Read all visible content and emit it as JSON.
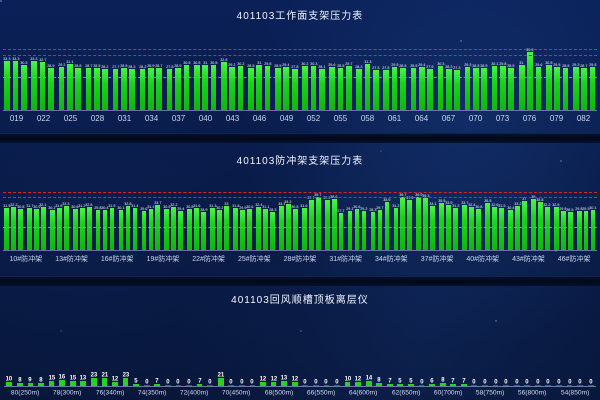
{
  "panels": {
    "panel1": {
      "title": "401103工作面支架压力表"
    },
    "panel2": {
      "title": "401103防冲架支架压力表"
    },
    "panel3": {
      "title": "401103回风顺槽顶板离层仪"
    }
  },
  "colors": {
    "background": "#081a46",
    "bar_green": "#1bd41b",
    "alarm_line_red": "#e02222",
    "warning_line_yellow": "#cf9a22",
    "label_text": "#eef3fb",
    "tick_text": "#c9d6ef"
  },
  "chart_data": [
    {
      "type": "bar",
      "title": "401103工作面支架压力表",
      "ylim": [
        0,
        45
      ],
      "grid": false,
      "legend": "none",
      "thresholds": {
        "alarm": [
          41,
          37
        ],
        "warning": 22
      },
      "tick_labels": [
        "019",
        "022",
        "025",
        "028",
        "031",
        "034",
        "037",
        "040",
        "043",
        "046",
        "049",
        "052",
        "055",
        "058",
        "061",
        "064",
        "067",
        "070",
        "073",
        "076",
        "079",
        "082"
      ],
      "values": [
        33.3,
        33.3,
        30.5,
        33.3,
        32.7,
        28.9,
        29.2,
        31.1,
        28.8,
        28.7,
        28.5,
        28.2,
        27.7,
        28.5,
        28.3,
        28.2,
        28.9,
        28.7,
        27.8,
        28.9,
        30.5,
        30.5,
        31,
        30.5,
        32.5,
        29.2,
        30.2,
        28.5,
        31,
        29.8,
        28.5,
        29.4,
        27.8,
        30.2,
        30.3,
        28.1,
        29.6,
        28.5,
        29.7,
        28.3,
        31.3,
        27.3,
        27.5,
        29.5,
        28.5,
        28.5,
        29.4,
        27.9,
        30.3,
        28.3,
        27.3,
        29.3,
        28.5,
        28.9,
        30.1,
        29.8,
        28.9,
        31,
        39.5,
        29.6,
        30.5,
        29.5,
        28.5,
        29.3,
        28.7,
        29.5
      ]
    },
    {
      "type": "bar",
      "title": "401103防冲架支架压力表",
      "ylim": [
        0,
        45
      ],
      "grid": false,
      "legend": "none",
      "thresholds": {
        "alarm": [
          43,
          39
        ],
        "warning": 16.5
      },
      "tick_labels": [
        "10#防冲架",
        "13#防冲架",
        "16#防冲架",
        "19#防冲架",
        "22#防冲架",
        "25#防冲架",
        "28#防冲架",
        "31#防冲架",
        "34#防冲架",
        "37#防冲架",
        "40#防冲架",
        "43#防冲架",
        "46#防冲架"
      ],
      "values": [
        31.5,
        32.2,
        30.8,
        31.7,
        30.9,
        32.1,
        30.2,
        31.8,
        33.3,
        30.6,
        31.2,
        32.5,
        29.8,
        30.4,
        31.9,
        30.1,
        32.8,
        31.4,
        29.6,
        31.1,
        33.7,
        30.9,
        32.2,
        29.4,
        30.8,
        31.6,
        28.9,
        31.3,
        30.2,
        33,
        31.8,
        29.9,
        30.6,
        32.4,
        31.1,
        28.3,
        33.1,
        34.2,
        30.5,
        31.6,
        37.7,
        39.7,
        37.9,
        38.6,
        27.7,
        29.1,
        30.6,
        29.2,
        28.3,
        29.7,
        35.9,
        31.2,
        39.7,
        37.9,
        39.9,
        39.3,
        33.1,
        35.5,
        33.9,
        31.2,
        33.7,
        32.4,
        30.8,
        35.5,
        32.6,
        31.9,
        30.4,
        33.2,
        37,
        38,
        35.8,
        32.2,
        32.5,
        29.5,
        28.5,
        29.5,
        29.3,
        30.1
      ]
    },
    {
      "type": "bar",
      "title": "401103回风顺槽顶板离层仪",
      "ylim": [
        0,
        25
      ],
      "grid": false,
      "legend": "none",
      "groups": [
        {
          "label": "80(250m)",
          "values": [
            10,
            8,
            9,
            8
          ]
        },
        {
          "label": "78(300m)",
          "values": [
            15,
            16,
            15,
            13
          ]
        },
        {
          "label": "76(340m)",
          "values": [
            23,
            21,
            12,
            23
          ]
        },
        {
          "label": "74(350m)",
          "values": [
            5,
            0,
            7,
            0
          ]
        },
        {
          "label": "72(400m)",
          "values": [
            0,
            0,
            7,
            0
          ]
        },
        {
          "label": "70(450m)",
          "values": [
            21,
            0,
            0,
            0
          ]
        },
        {
          "label": "68(500m)",
          "values": [
            12,
            12,
            13,
            12
          ]
        },
        {
          "label": "66(550m)",
          "values": [
            0,
            0,
            0,
            0
          ]
        },
        {
          "label": "64(600m)",
          "values": [
            10,
            12,
            14,
            8
          ]
        },
        {
          "label": "62(650m)",
          "values": [
            7,
            5,
            5,
            0
          ]
        },
        {
          "label": "60(700m)",
          "values": [
            6,
            8,
            7,
            7
          ]
        },
        {
          "label": "58(750m)",
          "values": [
            0,
            0,
            0,
            0
          ]
        },
        {
          "label": "56(800m)",
          "values": [
            0,
            0,
            0,
            0
          ]
        },
        {
          "label": "54(850m)",
          "values": [
            0,
            0,
            0,
            0
          ]
        }
      ]
    }
  ]
}
